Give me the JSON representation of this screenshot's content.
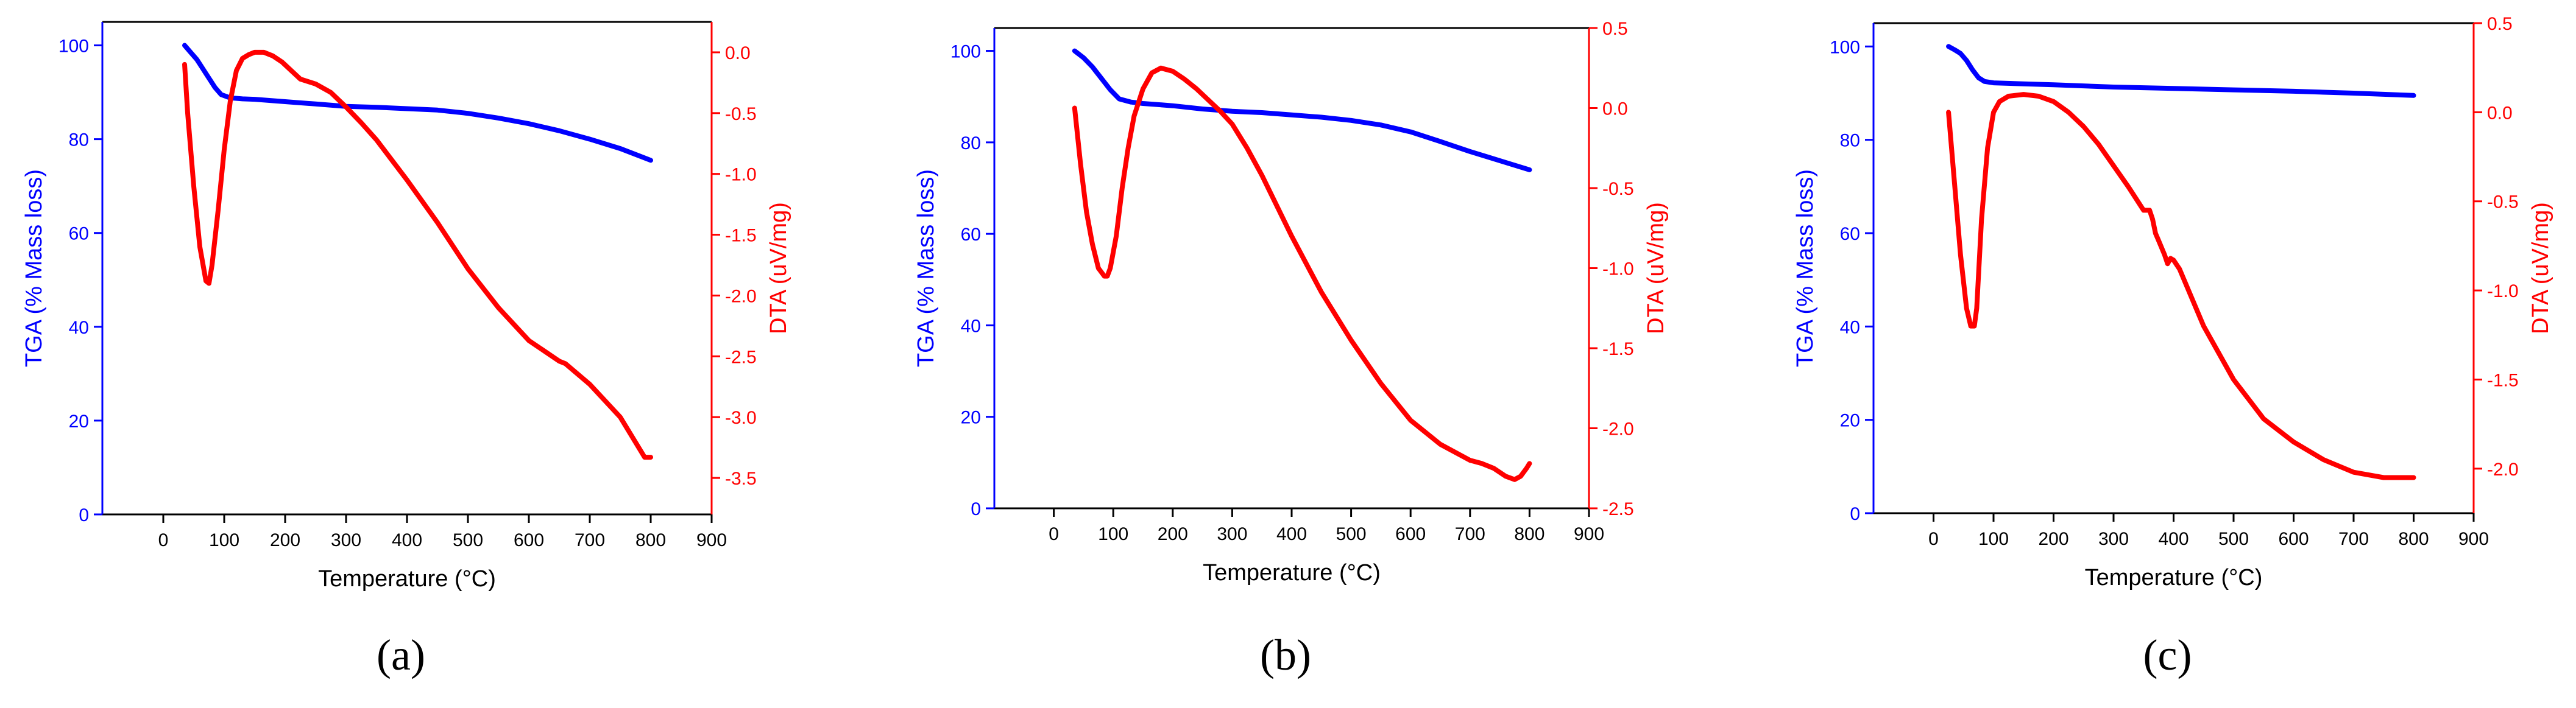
{
  "figure": {
    "colors": {
      "tga": "#0000ff",
      "dta": "#ff0000",
      "axis": "#000000"
    },
    "panels_order": [
      "a",
      "b",
      "c"
    ]
  },
  "chart_data": [
    {
      "type": "line",
      "panel_label": "(a)",
      "xlabel": "Temperature (°C)",
      "ylabel": "TGA (% Mass loss)",
      "y2label": "DTA (uV/mg)",
      "xlim": [
        -100,
        900
      ],
      "xticks": [
        0,
        100,
        200,
        300,
        400,
        500,
        600,
        700,
        800,
        900
      ],
      "ylim": [
        0,
        105
      ],
      "yticks": [
        0,
        20,
        40,
        60,
        80,
        100
      ],
      "y2lim": [
        -3.8,
        0.25
      ],
      "y2ticks": [
        0.0,
        -0.5,
        -1.0,
        -1.5,
        -2.0,
        -2.5,
        -3.0,
        -3.5
      ],
      "series": [
        {
          "name": "TGA",
          "axis": "left",
          "color": "#0000ff",
          "x": [
            35,
            45,
            55,
            65,
            75,
            85,
            95,
            110,
            130,
            150,
            200,
            250,
            300,
            350,
            400,
            450,
            500,
            550,
            600,
            650,
            700,
            750,
            800
          ],
          "y": [
            100,
            98.5,
            97,
            95,
            93,
            91,
            89.5,
            88.8,
            88.6,
            88.5,
            88,
            87.5,
            87,
            86.8,
            86.5,
            86.2,
            85.5,
            84.5,
            83.3,
            81.8,
            80,
            78,
            75.5
          ]
        },
        {
          "name": "DTA",
          "axis": "right",
          "color": "#ff0000",
          "x": [
            35,
            40,
            50,
            60,
            70,
            75,
            80,
            90,
            100,
            110,
            120,
            130,
            140,
            150,
            165,
            180,
            195,
            210,
            225,
            250,
            275,
            300,
            325,
            350,
            400,
            450,
            500,
            550,
            600,
            650,
            660,
            700,
            750,
            790,
            800
          ],
          "y": [
            -0.1,
            -0.5,
            -1.1,
            -1.6,
            -1.88,
            -1.9,
            -1.75,
            -1.3,
            -0.8,
            -0.4,
            -0.15,
            -0.05,
            -0.02,
            0.0,
            0.0,
            -0.03,
            -0.08,
            -0.15,
            -0.22,
            -0.26,
            -0.33,
            -0.45,
            -0.58,
            -0.72,
            -1.05,
            -1.4,
            -1.78,
            -2.1,
            -2.37,
            -2.54,
            -2.56,
            -2.73,
            -3.0,
            -3.33,
            -3.33
          ]
        }
      ]
    },
    {
      "type": "line",
      "panel_label": "(b)",
      "xlabel": "Temperature (°C)",
      "ylabel": "TGA (% Mass loss)",
      "y2label": "DTA (uV/mg)",
      "xlim": [
        -100,
        900
      ],
      "xticks": [
        0,
        100,
        200,
        300,
        400,
        500,
        600,
        700,
        800,
        900
      ],
      "ylim": [
        0,
        105
      ],
      "yticks": [
        0,
        20,
        40,
        60,
        80,
        100
      ],
      "y2lim": [
        -2.5,
        0.5
      ],
      "y2ticks": [
        0.5,
        0.0,
        -0.5,
        -1.0,
        -1.5,
        -2.0,
        -2.5
      ],
      "series": [
        {
          "name": "TGA",
          "axis": "left",
          "color": "#0000ff",
          "x": [
            35,
            50,
            65,
            80,
            95,
            110,
            130,
            150,
            200,
            250,
            300,
            350,
            400,
            450,
            500,
            550,
            600,
            650,
            700,
            750,
            800
          ],
          "y": [
            100,
            98.5,
            96.5,
            94,
            91.5,
            89.5,
            88.8,
            88.5,
            88,
            87.3,
            86.8,
            86.5,
            86,
            85.5,
            84.8,
            83.8,
            82.3,
            80.2,
            78,
            76,
            74
          ]
        },
        {
          "name": "DTA",
          "axis": "right",
          "color": "#ff0000",
          "x": [
            35,
            45,
            55,
            65,
            75,
            85,
            90,
            95,
            105,
            115,
            125,
            135,
            150,
            165,
            180,
            200,
            220,
            240,
            260,
            280,
            300,
            325,
            350,
            400,
            450,
            500,
            550,
            600,
            650,
            700,
            720,
            740,
            760,
            775,
            785,
            795,
            800
          ],
          "y": [
            0.0,
            -0.35,
            -0.65,
            -0.85,
            -1.0,
            -1.05,
            -1.05,
            -1.0,
            -0.8,
            -0.5,
            -0.25,
            -0.05,
            0.12,
            0.22,
            0.25,
            0.23,
            0.18,
            0.12,
            0.05,
            -0.02,
            -0.1,
            -0.25,
            -0.42,
            -0.8,
            -1.15,
            -1.45,
            -1.72,
            -1.95,
            -2.1,
            -2.2,
            -2.22,
            -2.25,
            -2.3,
            -2.32,
            -2.3,
            -2.25,
            -2.22
          ]
        }
      ]
    },
    {
      "type": "line",
      "panel_label": "(c)",
      "xlabel": "Temperature (°C)",
      "ylabel": "TGA (% Mass loss)",
      "y2label": "DTA (uV/mg)",
      "xlim": [
        -100,
        900
      ],
      "xticks": [
        0,
        100,
        200,
        300,
        400,
        500,
        600,
        700,
        800,
        900
      ],
      "ylim": [
        0,
        105
      ],
      "yticks": [
        0,
        20,
        40,
        60,
        80,
        100
      ],
      "y2lim": [
        -2.25,
        0.5
      ],
      "y2ticks": [
        0.5,
        0.0,
        -0.5,
        -1.0,
        -1.5,
        -2.0
      ],
      "series": [
        {
          "name": "TGA",
          "axis": "left",
          "color": "#0000ff",
          "x": [
            25,
            35,
            45,
            55,
            65,
            75,
            85,
            100,
            150,
            200,
            300,
            400,
            500,
            600,
            700,
            800
          ],
          "y": [
            100,
            99.3,
            98.5,
            97,
            95,
            93.3,
            92.5,
            92.2,
            92,
            91.8,
            91.3,
            91,
            90.7,
            90.4,
            90,
            89.5
          ]
        },
        {
          "name": "DTA",
          "axis": "right",
          "color": "#ff0000",
          "x": [
            25,
            35,
            45,
            55,
            62,
            68,
            72,
            80,
            90,
            100,
            110,
            125,
            150,
            175,
            200,
            225,
            250,
            275,
            300,
            325,
            350,
            360,
            365,
            370,
            375,
            385,
            390,
            395,
            400,
            410,
            450,
            500,
            550,
            600,
            650,
            700,
            750,
            800
          ],
          "y": [
            0.0,
            -0.4,
            -0.8,
            -1.1,
            -1.2,
            -1.2,
            -1.1,
            -0.6,
            -0.2,
            0.0,
            0.06,
            0.09,
            0.1,
            0.09,
            0.06,
            0.0,
            -0.08,
            -0.18,
            -0.3,
            -0.42,
            -0.55,
            -0.55,
            -0.6,
            -0.68,
            -0.72,
            -0.8,
            -0.85,
            -0.82,
            -0.83,
            -0.88,
            -1.2,
            -1.5,
            -1.72,
            -1.85,
            -1.95,
            -2.02,
            -2.05,
            -2.05
          ]
        }
      ]
    }
  ]
}
